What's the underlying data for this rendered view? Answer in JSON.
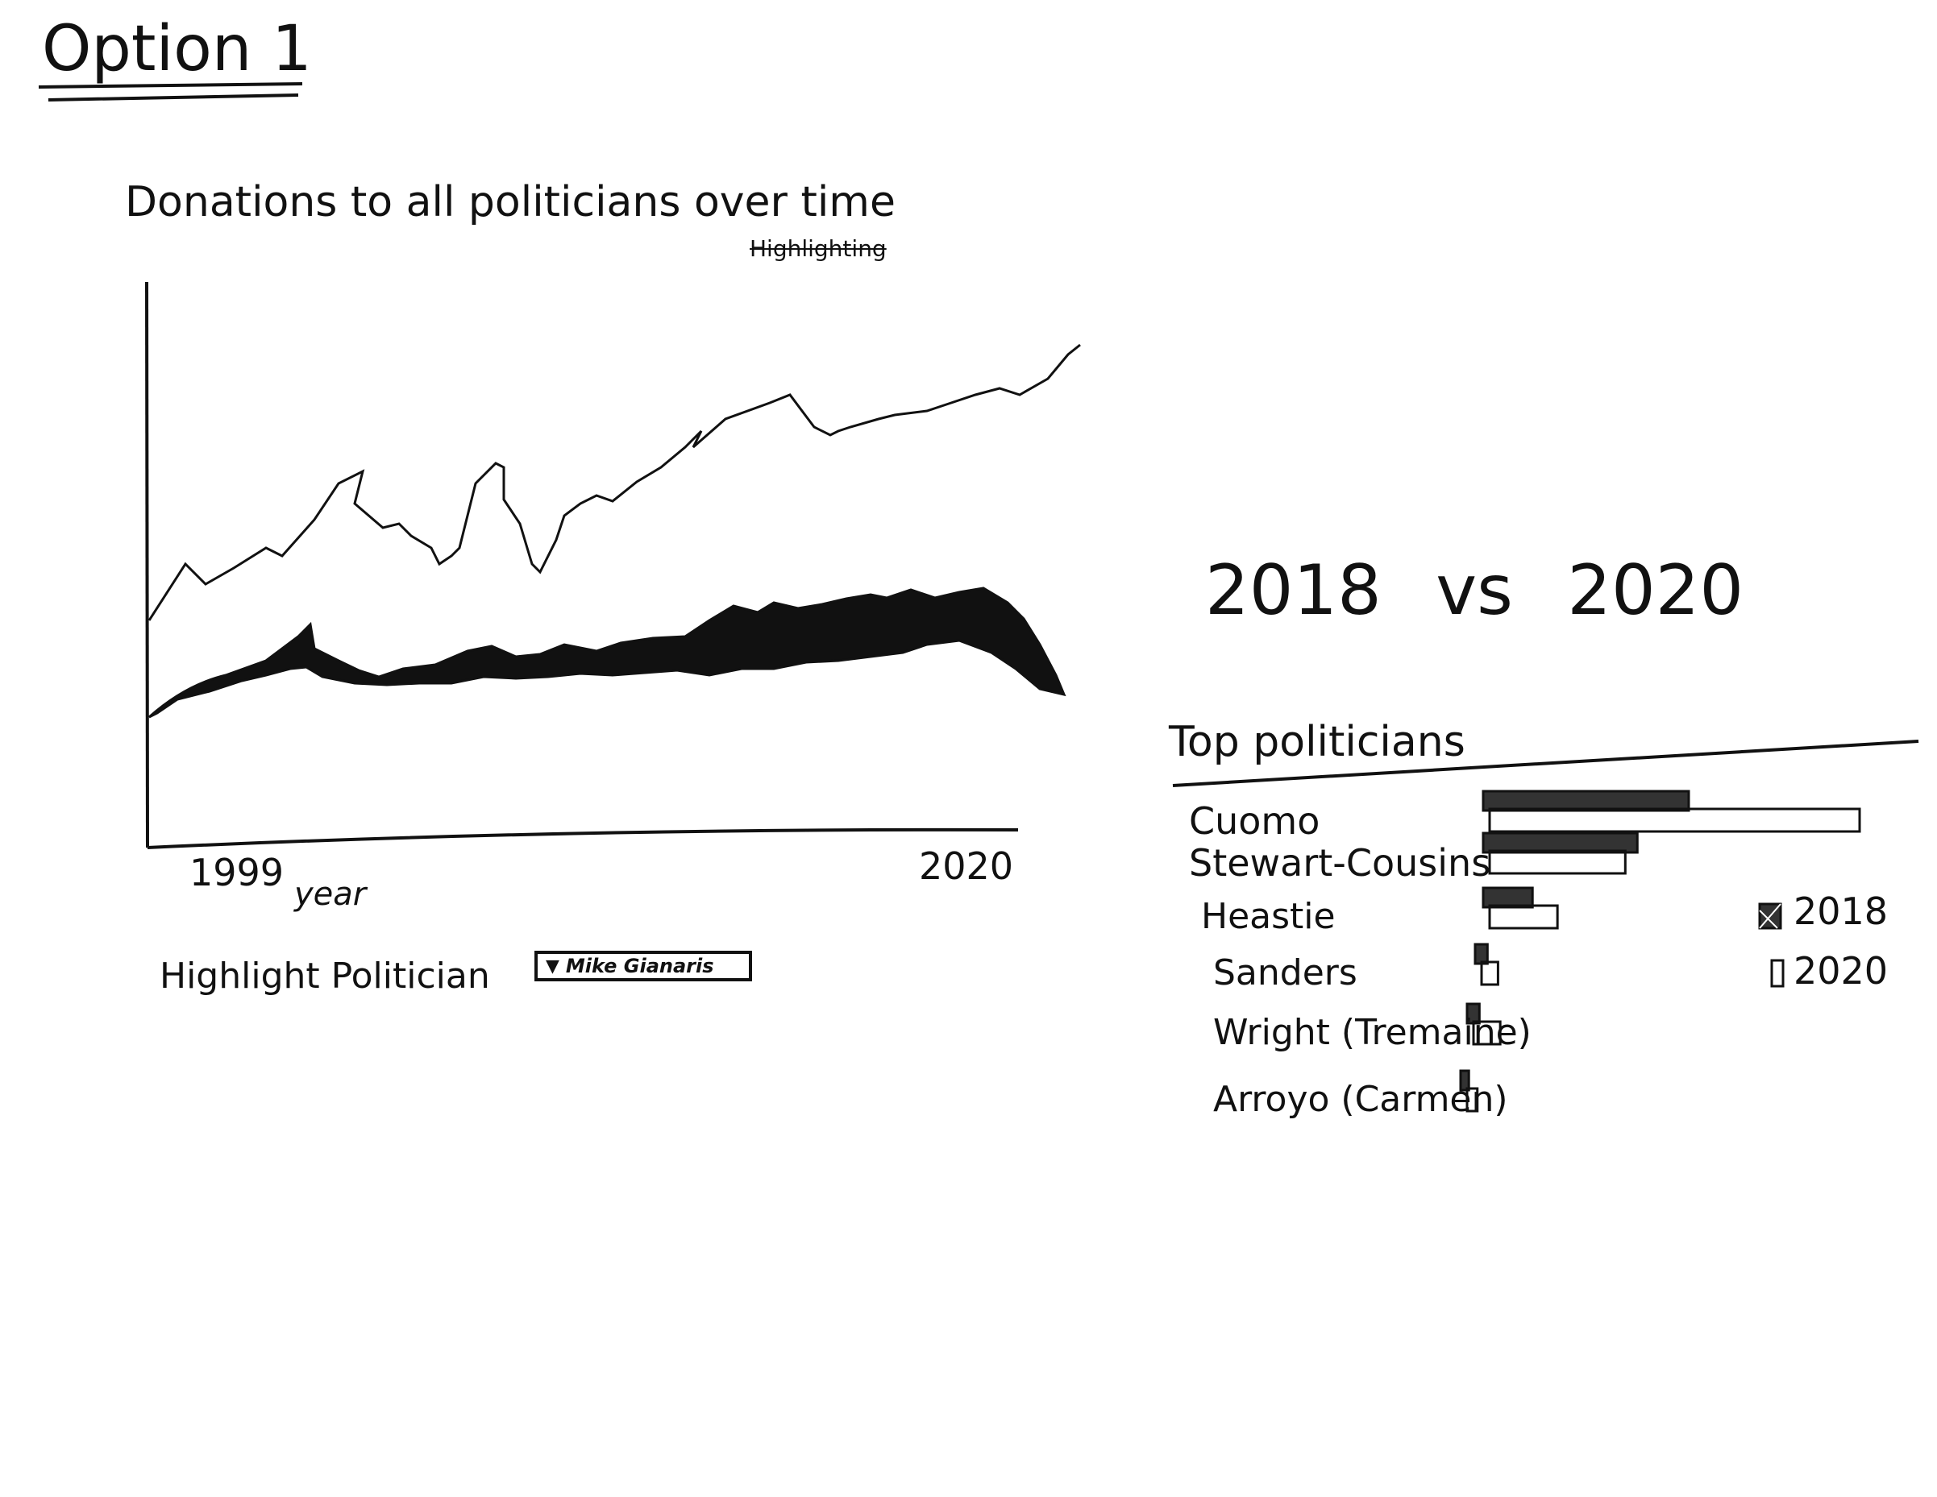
{
  "page": {
    "title": "Option 1"
  },
  "line_chart": {
    "title": "Donations to all politicians over time",
    "note": "Highlighting",
    "x_start": "1999",
    "x_end": "2020",
    "x_label": "year"
  },
  "highlight": {
    "label": "Highlight Politician",
    "selected": "Mike Gianaris",
    "caret_icon": "caret-down-icon"
  },
  "bar_chart": {
    "title": "2018 vs 2020",
    "subtitle": "Top politicians",
    "legend": [
      "2018",
      "2020"
    ]
  },
  "chart_data": {
    "type": "bar",
    "title": "2018 vs 2020",
    "subtitle": "Top politicians",
    "categories": [
      "Cuomo",
      "Stewart-Cousins",
      "Heastie",
      "Sanders",
      "Wright (Tremaine)",
      "Arroyo (Carmen)"
    ],
    "series": [
      {
        "name": "2018",
        "values": [
          100,
          75,
          24,
          6,
          6,
          4
        ]
      },
      {
        "name": "2020",
        "values": [
          180,
          66,
          33,
          8,
          13,
          5
        ]
      }
    ],
    "legend_position": "right"
  }
}
